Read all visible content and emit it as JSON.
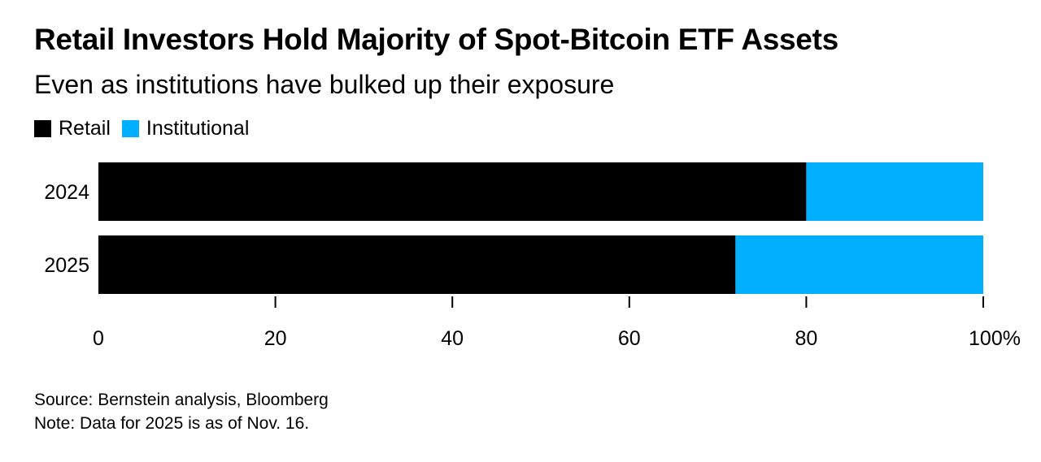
{
  "header": {
    "title": "Retail Investors Hold Majority of Spot-Bitcoin ETF Assets",
    "subtitle": "Even as institutions have bulked up their exposure"
  },
  "legend": {
    "retail": "Retail",
    "institutional": "Institutional"
  },
  "colors": {
    "retail": "#000000",
    "institutional": "#00b0ff",
    "axis": "#000000"
  },
  "chart_data": {
    "type": "bar",
    "orientation": "horizontal",
    "stacked": true,
    "categories": [
      "2024",
      "2025"
    ],
    "series": [
      {
        "name": "Retail",
        "values": [
          80,
          72
        ]
      },
      {
        "name": "Institutional",
        "values": [
          20,
          28
        ]
      }
    ],
    "xlim": [
      0,
      100
    ],
    "xticks": [
      0,
      20,
      40,
      60,
      80,
      100
    ],
    "xtick_labels": [
      "0",
      "20",
      "40",
      "60",
      "80",
      "100%"
    ],
    "title": "Retail Investors Hold Majority of Spot-Bitcoin ETF Assets",
    "subtitle": "Even as institutions have bulked up their exposure",
    "xlabel": "",
    "ylabel": "",
    "grid": false,
    "legend_position": "top-left"
  },
  "footer": {
    "source": "Source: Bernstein analysis, Bloomberg",
    "note": "Note: Data for 2025 is as of Nov. 16."
  }
}
